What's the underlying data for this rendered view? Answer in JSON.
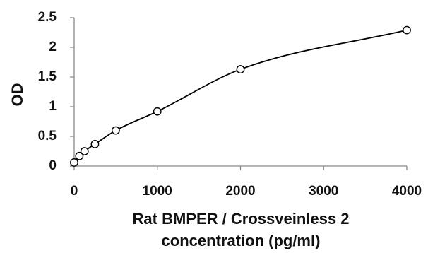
{
  "chart_data": {
    "type": "scatter",
    "title": "",
    "xlabel_lines": [
      "Rat BMPER / Crossveinless 2",
      "concentration (pg/ml)"
    ],
    "ylabel": "OD",
    "xlim": [
      0,
      4000
    ],
    "ylim": [
      0,
      2.5
    ],
    "x_ticks": [
      0,
      1000,
      2000,
      3000,
      4000
    ],
    "y_ticks": [
      0,
      0.5,
      1,
      1.5,
      2,
      2.5
    ],
    "x_tick_labels": [
      "0",
      "1000",
      "2000",
      "3000",
      "4000"
    ],
    "y_tick_labels": [
      "0",
      "0.5",
      "1",
      "1.5",
      "2",
      "2.5"
    ],
    "grid": false,
    "legend": "none",
    "series": [
      {
        "points": [
          {
            "x": 0,
            "y": 0.06
          },
          {
            "x": 62.5,
            "y": 0.17
          },
          {
            "x": 125,
            "y": 0.25
          },
          {
            "x": 250,
            "y": 0.37
          },
          {
            "x": 500,
            "y": 0.6
          },
          {
            "x": 1000,
            "y": 0.92
          },
          {
            "x": 2000,
            "y": 1.63
          },
          {
            "x": 4000,
            "y": 2.29
          }
        ],
        "marker": "open-circle",
        "fit": "smooth-curve"
      }
    ],
    "colors": {
      "marker_stroke": "#000000",
      "curve": "#000000",
      "axis": "#888888",
      "text": "#111111"
    }
  }
}
